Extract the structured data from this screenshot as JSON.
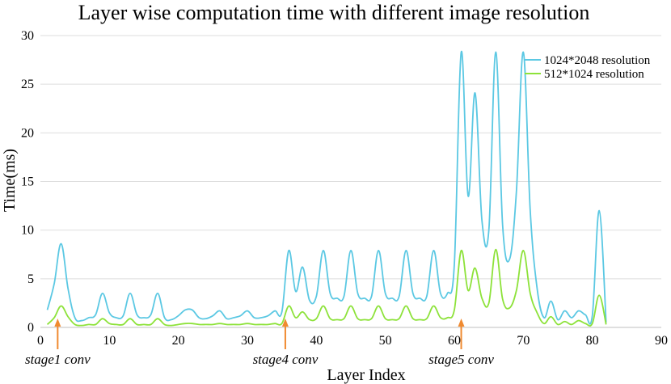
{
  "chart_data": {
    "type": "line",
    "title": "Layer wise computation time with different image resolution",
    "xlabel": "Layer Index",
    "ylabel": "Time(ms)",
    "xlim": [
      0,
      90
    ],
    "ylim": [
      0,
      30
    ],
    "xticks": [
      0,
      10,
      20,
      30,
      40,
      50,
      60,
      70,
      80,
      90
    ],
    "yticks": [
      0,
      5,
      10,
      15,
      20,
      25,
      30
    ],
    "grid": "horizontal",
    "legend_position": "top-right",
    "series": [
      {
        "name": "1024*2048 resolution",
        "color": "#5BC8E3",
        "points": [
          [
            1,
            1.8
          ],
          [
            2,
            4.5
          ],
          [
            3,
            8.6
          ],
          [
            4,
            4.0
          ],
          [
            5,
            1.0
          ],
          [
            6,
            0.7
          ],
          [
            7,
            1.0
          ],
          [
            8,
            1.3
          ],
          [
            9,
            3.5
          ],
          [
            10,
            1.5
          ],
          [
            11,
            1.0
          ],
          [
            12,
            1.2
          ],
          [
            13,
            3.5
          ],
          [
            14,
            1.3
          ],
          [
            15,
            1.0
          ],
          [
            16,
            1.3
          ],
          [
            17,
            3.5
          ],
          [
            18,
            1.0
          ],
          [
            19,
            0.8
          ],
          [
            20,
            1.2
          ],
          [
            21,
            1.8
          ],
          [
            22,
            1.8
          ],
          [
            23,
            1.0
          ],
          [
            24,
            0.9
          ],
          [
            25,
            1.2
          ],
          [
            26,
            1.7
          ],
          [
            27,
            0.9
          ],
          [
            28,
            1.0
          ],
          [
            29,
            1.2
          ],
          [
            30,
            1.7
          ],
          [
            31,
            1.0
          ],
          [
            32,
            1.0
          ],
          [
            33,
            1.2
          ],
          [
            34,
            1.7
          ],
          [
            35,
            1.6
          ],
          [
            36,
            7.9
          ],
          [
            37,
            3.7
          ],
          [
            38,
            6.2
          ],
          [
            39,
            2.8
          ],
          [
            40,
            3.2
          ],
          [
            41,
            7.9
          ],
          [
            42,
            3.5
          ],
          [
            43,
            3.0
          ],
          [
            44,
            3.2
          ],
          [
            45,
            7.9
          ],
          [
            46,
            3.5
          ],
          [
            47,
            3.0
          ],
          [
            48,
            3.2
          ],
          [
            49,
            7.9
          ],
          [
            50,
            3.5
          ],
          [
            51,
            3.0
          ],
          [
            52,
            3.2
          ],
          [
            53,
            7.9
          ],
          [
            54,
            3.5
          ],
          [
            55,
            3.0
          ],
          [
            56,
            3.2
          ],
          [
            57,
            7.9
          ],
          [
            58,
            3.5
          ],
          [
            59,
            3.5
          ],
          [
            60,
            6.5
          ],
          [
            61,
            28.3
          ],
          [
            62,
            13.5
          ],
          [
            63,
            24.1
          ],
          [
            64,
            11.0
          ],
          [
            65,
            10.0
          ],
          [
            66,
            28.3
          ],
          [
            67,
            10.5
          ],
          [
            68,
            7.0
          ],
          [
            69,
            14.0
          ],
          [
            70,
            28.3
          ],
          [
            71,
            12.0
          ],
          [
            72,
            4.0
          ],
          [
            73,
            1.0
          ],
          [
            74,
            2.7
          ],
          [
            75,
            0.8
          ],
          [
            76,
            1.7
          ],
          [
            77,
            1.0
          ],
          [
            78,
            1.7
          ],
          [
            79,
            1.3
          ],
          [
            80,
            1.2
          ],
          [
            81,
            12.0
          ],
          [
            82,
            0.5
          ]
        ]
      },
      {
        "name": "512*1024 resolution",
        "color": "#8DE23A",
        "points": [
          [
            1,
            0.3
          ],
          [
            2,
            1.0
          ],
          [
            3,
            2.2
          ],
          [
            4,
            1.1
          ],
          [
            5,
            0.3
          ],
          [
            6,
            0.2
          ],
          [
            7,
            0.3
          ],
          [
            8,
            0.3
          ],
          [
            9,
            0.9
          ],
          [
            10,
            0.4
          ],
          [
            11,
            0.3
          ],
          [
            12,
            0.3
          ],
          [
            13,
            0.9
          ],
          [
            14,
            0.3
          ],
          [
            15,
            0.3
          ],
          [
            16,
            0.3
          ],
          [
            17,
            0.9
          ],
          [
            18,
            0.3
          ],
          [
            19,
            0.2
          ],
          [
            20,
            0.3
          ],
          [
            21,
            0.4
          ],
          [
            22,
            0.4
          ],
          [
            23,
            0.3
          ],
          [
            24,
            0.3
          ],
          [
            25,
            0.3
          ],
          [
            26,
            0.4
          ],
          [
            27,
            0.3
          ],
          [
            28,
            0.3
          ],
          [
            29,
            0.3
          ],
          [
            30,
            0.4
          ],
          [
            31,
            0.3
          ],
          [
            32,
            0.3
          ],
          [
            33,
            0.3
          ],
          [
            34,
            0.4
          ],
          [
            35,
            0.4
          ],
          [
            36,
            2.2
          ],
          [
            37,
            1.0
          ],
          [
            38,
            1.6
          ],
          [
            39,
            0.8
          ],
          [
            40,
            0.9
          ],
          [
            41,
            2.2
          ],
          [
            42,
            0.9
          ],
          [
            43,
            0.8
          ],
          [
            44,
            0.9
          ],
          [
            45,
            2.2
          ],
          [
            46,
            0.9
          ],
          [
            47,
            0.8
          ],
          [
            48,
            0.9
          ],
          [
            49,
            2.2
          ],
          [
            50,
            0.9
          ],
          [
            51,
            0.8
          ],
          [
            52,
            0.9
          ],
          [
            53,
            2.2
          ],
          [
            54,
            0.9
          ],
          [
            55,
            0.8
          ],
          [
            56,
            0.9
          ],
          [
            57,
            2.2
          ],
          [
            58,
            1.0
          ],
          [
            59,
            1.0
          ],
          [
            60,
            1.8
          ],
          [
            61,
            7.9
          ],
          [
            62,
            3.8
          ],
          [
            63,
            6.1
          ],
          [
            64,
            3.0
          ],
          [
            65,
            2.5
          ],
          [
            66,
            8.0
          ],
          [
            67,
            2.9
          ],
          [
            68,
            2.0
          ],
          [
            69,
            3.8
          ],
          [
            70,
            7.9
          ],
          [
            71,
            3.5
          ],
          [
            72,
            1.5
          ],
          [
            73,
            0.4
          ],
          [
            74,
            1.1
          ],
          [
            75,
            0.3
          ],
          [
            76,
            0.6
          ],
          [
            77,
            0.3
          ],
          [
            78,
            0.7
          ],
          [
            79,
            0.4
          ],
          [
            80,
            0.4
          ],
          [
            81,
            3.3
          ],
          [
            82,
            0.3
          ]
        ]
      }
    ],
    "annotations": [
      {
        "text": "stage1 conv",
        "x": 2.5
      },
      {
        "text": "stage4 conv",
        "x": 35.5
      },
      {
        "text": "stage5 conv",
        "x": 61
      }
    ],
    "annotation_color": "#F08A30"
  }
}
